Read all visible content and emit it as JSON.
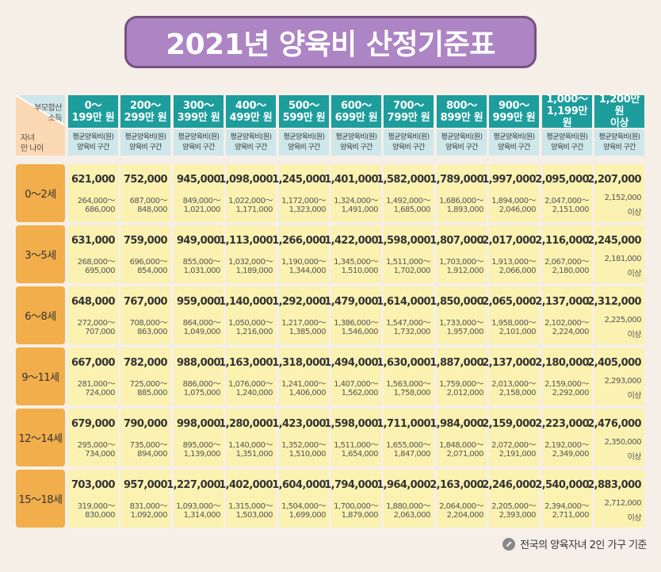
{
  "title": "2021년 양육비 산정기준표",
  "corner": {
    "income_label_1": "부모합산",
    "income_label_2": "소득",
    "age_label_1": "자녀",
    "age_label_2": "만 나이"
  },
  "columns": [
    {
      "income": "0～\n199만 원"
    },
    {
      "income": "200～\n299만 원"
    },
    {
      "income": "300～\n399만 원"
    },
    {
      "income": "400～\n499만 원"
    },
    {
      "income": "500～\n599만 원"
    },
    {
      "income": "600～\n699만 원"
    },
    {
      "income": "700～\n799만 원"
    },
    {
      "income": "800～\n899만 원"
    },
    {
      "income": "900～\n999만 원"
    },
    {
      "income": "1,000～\n1,199만 원"
    },
    {
      "income": "1,200만 원\n이상"
    }
  ],
  "sub_header_1": "평균양육비(원)",
  "sub_header_2": "양육비 구간",
  "rows": [
    {
      "age": "0～2세",
      "cells": [
        {
          "avg": "621,000",
          "r1": "264,000～",
          "r2": "686,000"
        },
        {
          "avg": "752,000",
          "r1": "687,000～",
          "r2": "848,000"
        },
        {
          "avg": "945,000",
          "r1": "849,000～",
          "r2": "1,021,000"
        },
        {
          "avg": "1,098,000",
          "r1": "1,022,000～",
          "r2": "1,171,000"
        },
        {
          "avg": "1,245,000",
          "r1": "1,172,000～",
          "r2": "1,323,000"
        },
        {
          "avg": "1,401,000",
          "r1": "1,324,000～",
          "r2": "1,491,000"
        },
        {
          "avg": "1,582,000",
          "r1": "1,492,000～",
          "r2": "1,685,000"
        },
        {
          "avg": "1,789,000",
          "r1": "1,686,000～",
          "r2": "1,893,000"
        },
        {
          "avg": "1,997,000",
          "r1": "1,894,000～",
          "r2": "2,046,000"
        },
        {
          "avg": "2,095,000",
          "r1": "2,047,000～",
          "r2": "2,151,000"
        },
        {
          "avg": "2,207,000",
          "r1": "2,152,000",
          "r2": "이상"
        }
      ]
    },
    {
      "age": "3～5세",
      "cells": [
        {
          "avg": "631,000",
          "r1": "268,000～",
          "r2": "695,000"
        },
        {
          "avg": "759,000",
          "r1": "696,000～",
          "r2": "854,000"
        },
        {
          "avg": "949,000",
          "r1": "855,000～",
          "r2": "1,031,000"
        },
        {
          "avg": "1,113,000",
          "r1": "1,032,000～",
          "r2": "1,189,000"
        },
        {
          "avg": "1,266,000",
          "r1": "1,190,000～",
          "r2": "1,344,000"
        },
        {
          "avg": "1,422,000",
          "r1": "1,345,000～",
          "r2": "1,510,000"
        },
        {
          "avg": "1,598,000",
          "r1": "1,511,000～",
          "r2": "1,702,000"
        },
        {
          "avg": "1,807,000",
          "r1": "1,703,000～",
          "r2": "1,912,000"
        },
        {
          "avg": "2,017,000",
          "r1": "1,913,000～",
          "r2": "2,066,000"
        },
        {
          "avg": "2,116,000",
          "r1": "2,067,000～",
          "r2": "2,180,000"
        },
        {
          "avg": "2,245,000",
          "r1": "2,181,000",
          "r2": "이상"
        }
      ]
    },
    {
      "age": "6～8세",
      "cells": [
        {
          "avg": "648,000",
          "r1": "272,000～",
          "r2": "707,000"
        },
        {
          "avg": "767,000",
          "r1": "708,000～",
          "r2": "863,000"
        },
        {
          "avg": "959,000",
          "r1": "864,000～",
          "r2": "1,049,000"
        },
        {
          "avg": "1,140,000",
          "r1": "1,050,000～",
          "r2": "1,216,000"
        },
        {
          "avg": "1,292,000",
          "r1": "1,217,000～",
          "r2": "1,385,000"
        },
        {
          "avg": "1,479,000",
          "r1": "1,386,000～",
          "r2": "1,546,000"
        },
        {
          "avg": "1,614,000",
          "r1": "1,547,000～",
          "r2": "1,732,000"
        },
        {
          "avg": "1,850,000",
          "r1": "1,733,000～",
          "r2": "1,957,000"
        },
        {
          "avg": "2,065,000",
          "r1": "1,958,000～",
          "r2": "2,101,000"
        },
        {
          "avg": "2,137,000",
          "r1": "2,102,000～",
          "r2": "2,224,000"
        },
        {
          "avg": "2,312,000",
          "r1": "2,225,000",
          "r2": "이상"
        }
      ]
    },
    {
      "age": "9～11세",
      "cells": [
        {
          "avg": "667,000",
          "r1": "281,000～",
          "r2": "724,000"
        },
        {
          "avg": "782,000",
          "r1": "725,000～",
          "r2": "885,000"
        },
        {
          "avg": "988,000",
          "r1": "886,000～",
          "r2": "1,075,000"
        },
        {
          "avg": "1,163,000",
          "r1": "1,076,000～",
          "r2": "1,240,000"
        },
        {
          "avg": "1,318,000",
          "r1": "1,241,000～",
          "r2": "1,406,000"
        },
        {
          "avg": "1,494,000",
          "r1": "1,407,000～",
          "r2": "1,562,000"
        },
        {
          "avg": "1,630,000",
          "r1": "1,563,000～",
          "r2": "1,758,000"
        },
        {
          "avg": "1,887,000",
          "r1": "1,759,000～",
          "r2": "2,012,000"
        },
        {
          "avg": "2,137,000",
          "r1": "2,013,000～",
          "r2": "2,158,000"
        },
        {
          "avg": "2,180,000",
          "r1": "2,159,000～",
          "r2": "2,292,000"
        },
        {
          "avg": "2,405,000",
          "r1": "2,293,000",
          "r2": "이상"
        }
      ]
    },
    {
      "age": "12～14세",
      "cells": [
        {
          "avg": "679,000",
          "r1": "295,000～",
          "r2": "734,000"
        },
        {
          "avg": "790,000",
          "r1": "735,000～",
          "r2": "894,000"
        },
        {
          "avg": "998,000",
          "r1": "895,000～",
          "r2": "1,139,000"
        },
        {
          "avg": "1,280,000",
          "r1": "1,140,000～",
          "r2": "1,351,000"
        },
        {
          "avg": "1,423,000",
          "r1": "1,352,000～",
          "r2": "1,510,000"
        },
        {
          "avg": "1,598,000",
          "r1": "1,511,000～",
          "r2": "1,654,000"
        },
        {
          "avg": "1,711,000",
          "r1": "1,655,000～",
          "r2": "1,847,000"
        },
        {
          "avg": "1,984,000",
          "r1": "1,848,000～",
          "r2": "2,071,000"
        },
        {
          "avg": "2,159,000",
          "r1": "2,072,000～",
          "r2": "2,191,000"
        },
        {
          "avg": "2,223,000",
          "r1": "2,192,000～",
          "r2": "2,349,000"
        },
        {
          "avg": "2,476,000",
          "r1": "2,350,000",
          "r2": "이상"
        }
      ]
    },
    {
      "age": "15～18세",
      "cells": [
        {
          "avg": "703,000",
          "r1": "319,000～",
          "r2": "830,000"
        },
        {
          "avg": "957,000",
          "r1": "831,000～",
          "r2": "1,092,000"
        },
        {
          "avg": "1,227,000",
          "r1": "1,093,000～",
          "r2": "1,314,000"
        },
        {
          "avg": "1,402,000",
          "r1": "1,315,000～",
          "r2": "1,503,000"
        },
        {
          "avg": "1,604,000",
          "r1": "1,504,000～",
          "r2": "1,699,000"
        },
        {
          "avg": "1,794,000",
          "r1": "1,700,000～",
          "r2": "1,879,000"
        },
        {
          "avg": "1,964,000",
          "r1": "1,880,000～",
          "r2": "2,063,000"
        },
        {
          "avg": "2,163,000",
          "r1": "2,064,000～",
          "r2": "2,204,000"
        },
        {
          "avg": "2,246,000",
          "r1": "2,205,000～",
          "r2": "2,393,000"
        },
        {
          "avg": "2,540,000",
          "r1": "2,394,000～",
          "r2": "2,711,000"
        },
        {
          "avg": "2,883,000",
          "r1": "2,712,000",
          "r2": "이상"
        }
      ]
    }
  ],
  "footnote": "전국의 양육자녀 2인 가구 기준",
  "footnote_icon": "pencil-icon",
  "colors": {
    "title_bg": "#ad84c4",
    "header_top": "#1d9d9c",
    "header_bottom": "#cde7ea",
    "row_label": "#f1ae4b",
    "cell_bg": "#fbf2b1"
  }
}
